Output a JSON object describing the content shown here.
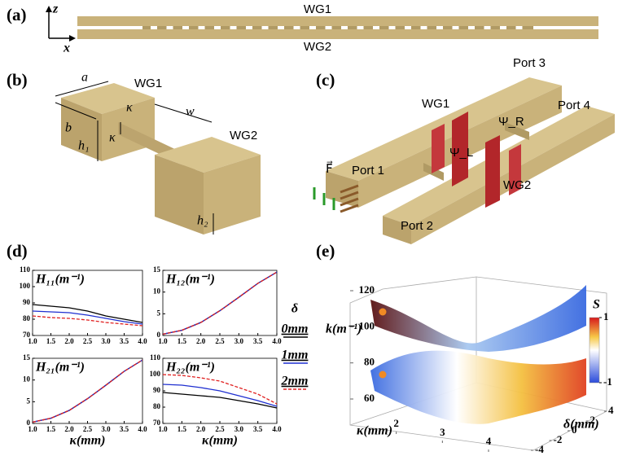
{
  "panel_a": {
    "label": "(a)",
    "wg1": "WG1",
    "wg2": "WG2",
    "axis_z": "z",
    "axis_x": "x"
  },
  "panel_b": {
    "label": "(b)",
    "a": "a",
    "wg1": "WG1",
    "kappa_top": "κ",
    "w": "w",
    "b": "b",
    "kappa_side": "κ",
    "h1": "h₁",
    "wg2": "WG2",
    "h2": "h₂"
  },
  "panel_c": {
    "label": "(c)",
    "port3": "Port 3",
    "wg1": "WG1",
    "psi_r": "Ψ_R",
    "port4": "Port 4",
    "force": "F⃗",
    "psi_l": "Ψ_L",
    "port1": "Port 1",
    "wg2": "WG2",
    "port2": "Port 2"
  },
  "panel_d": {
    "label": "(d)"
  },
  "legend": {
    "title": "δ",
    "entries": [
      {
        "name": "0mm",
        "color": "#000000",
        "dash": false
      },
      {
        "name": "1mm",
        "color": "#1f2fd0",
        "dash": false
      },
      {
        "name": "2mm",
        "color": "#e02020",
        "dash": true
      }
    ]
  },
  "chart_data": [
    {
      "type": "line",
      "title": "H₁₁(m⁻¹)",
      "x": [
        1.0,
        1.5,
        2.0,
        2.5,
        3.0,
        3.5,
        4.0
      ],
      "series": [
        {
          "values": [
            89,
            88,
            87,
            85,
            82,
            80,
            78
          ]
        },
        {
          "values": [
            85,
            84.5,
            84,
            82.5,
            80.5,
            78.5,
            77
          ]
        },
        {
          "values": [
            82,
            81,
            80.5,
            79.5,
            78,
            77,
            76
          ]
        }
      ],
      "xlim": [
        1,
        4
      ],
      "xticks": [
        {
          "value": 1,
          "label": "1.0"
        },
        {
          "value": 1.5,
          "label": "1.5"
        },
        {
          "value": 2,
          "label": "2.0"
        },
        {
          "value": 2.5,
          "label": "2.5"
        },
        {
          "value": 3,
          "label": "3.0"
        },
        {
          "value": 3.5,
          "label": "3.5"
        },
        {
          "value": 4,
          "label": "4.0"
        }
      ],
      "ylim": [
        70,
        110
      ],
      "yticks": [
        70,
        80,
        90,
        100,
        110
      ]
    },
    {
      "type": "line",
      "title": "H₁₂(m⁻¹)",
      "x": [
        1.0,
        1.5,
        2.0,
        2.5,
        3.0,
        3.5,
        4.0
      ],
      "series": [
        {
          "values": [
            0.3,
            1.2,
            3,
            5.7,
            8.8,
            12,
            14.6
          ]
        },
        {
          "values": [
            0.3,
            1.2,
            3,
            5.7,
            8.8,
            12,
            14.6
          ]
        },
        {
          "values": [
            0.3,
            1.2,
            3,
            5.7,
            8.8,
            12,
            14.6
          ]
        }
      ],
      "xlim": [
        1,
        4
      ],
      "xticks": [
        {
          "value": 1,
          "label": "1.0"
        },
        {
          "value": 1.5,
          "label": "1.5"
        },
        {
          "value": 2,
          "label": "2.0"
        },
        {
          "value": 2.5,
          "label": "2.5"
        },
        {
          "value": 3,
          "label": "3.0"
        },
        {
          "value": 3.5,
          "label": "3.5"
        },
        {
          "value": 4,
          "label": "4.0"
        }
      ],
      "ylim": [
        0,
        15
      ],
      "yticks": [
        0,
        5,
        10,
        15
      ]
    },
    {
      "type": "line",
      "title": "H₂₁(m⁻¹)",
      "xlabel": "κ(mm)",
      "x": [
        1.0,
        1.5,
        2.0,
        2.5,
        3.0,
        3.5,
        4.0
      ],
      "series": [
        {
          "values": [
            0.3,
            1.2,
            3,
            5.7,
            8.8,
            12,
            14.6
          ]
        },
        {
          "values": [
            0.3,
            1.2,
            3,
            5.7,
            8.8,
            12,
            14.6
          ]
        },
        {
          "values": [
            0.3,
            1.2,
            3,
            5.7,
            8.8,
            12,
            14.6
          ]
        }
      ],
      "xlim": [
        1,
        4
      ],
      "xticks": [
        {
          "value": 1,
          "label": "1.0"
        },
        {
          "value": 1.5,
          "label": "1.5"
        },
        {
          "value": 2,
          "label": "2.0"
        },
        {
          "value": 2.5,
          "label": "2.5"
        },
        {
          "value": 3,
          "label": "3.0"
        },
        {
          "value": 3.5,
          "label": "3.5"
        },
        {
          "value": 4,
          "label": "4.0"
        }
      ],
      "ylim": [
        0,
        15
      ],
      "yticks": [
        0,
        5,
        10,
        15
      ]
    },
    {
      "type": "line",
      "title": "H₂₂(m⁻¹)",
      "xlabel": "κ(mm)",
      "x": [
        1.0,
        1.5,
        2.0,
        2.5,
        3.0,
        3.5,
        4.0
      ],
      "series": [
        {
          "values": [
            89,
            88,
            87,
            86,
            84,
            82,
            79.5
          ]
        },
        {
          "values": [
            94,
            93.5,
            92,
            90,
            87,
            84,
            80.5
          ]
        },
        {
          "values": [
            100,
            99.5,
            98,
            96,
            92,
            88,
            82
          ]
        }
      ],
      "xlim": [
        1,
        4
      ],
      "xticks": [
        {
          "value": 1,
          "label": "1.0"
        },
        {
          "value": 1.5,
          "label": "1.5"
        },
        {
          "value": 2,
          "label": "2.0"
        },
        {
          "value": 2.5,
          "label": "2.5"
        },
        {
          "value": 3,
          "label": "3.0"
        },
        {
          "value": 3.5,
          "label": "3.5"
        },
        {
          "value": 4,
          "label": "4.0"
        }
      ],
      "ylim": [
        70,
        110
      ],
      "yticks": [
        70,
        80,
        90,
        100,
        110
      ]
    }
  ],
  "panel_e": {
    "label": "(e)",
    "zlabel": "k(m⁻¹)",
    "zlim": [
      60,
      120
    ],
    "zticks": [
      60,
      80,
      100,
      120
    ],
    "xlabel": "κ(mm)",
    "xlim": [
      1,
      4
    ],
    "xticks": [
      2,
      3,
      4
    ],
    "ylabel": "δ(mm)",
    "ylim": [
      -4,
      4
    ],
    "yticks": [
      -4,
      -2,
      0,
      2,
      4
    ],
    "colorbar_label": "S",
    "clim": [
      -1,
      1
    ],
    "cticks": [
      -1,
      1
    ]
  }
}
